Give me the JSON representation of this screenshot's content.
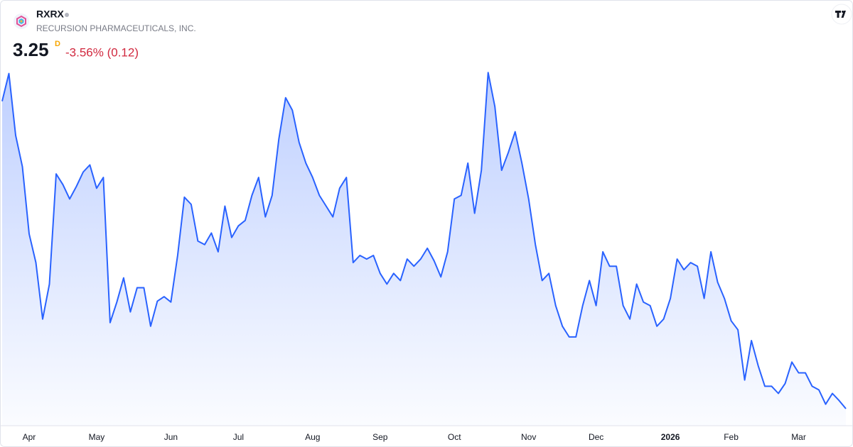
{
  "header": {
    "ticker": "RXRX",
    "name": "RECURSION PHARMACEUTICALS, INC.",
    "price": "3.25",
    "interval": "D",
    "change": "-3.56% (0.12)"
  },
  "chart_data": {
    "type": "area",
    "color": "#2962ff",
    "categories": [
      null,
      null,
      null,
      null,
      "Apr",
      null,
      null,
      null,
      null,
      null,
      null,
      null,
      null,
      null,
      "May",
      null,
      null,
      null,
      null,
      null,
      null,
      null,
      null,
      null,
      null,
      "Jun",
      null,
      null,
      null,
      null,
      null,
      null,
      null,
      null,
      null,
      "Jul",
      null,
      null,
      null,
      null,
      null,
      null,
      null,
      null,
      null,
      null,
      "Aug",
      null,
      null,
      null,
      null,
      null,
      null,
      null,
      null,
      null,
      "Sep",
      null,
      null,
      null,
      null,
      null,
      null,
      null,
      null,
      null,
      null,
      "Oct",
      null,
      null,
      null,
      null,
      null,
      null,
      null,
      null,
      null,
      null,
      "Nov",
      null,
      null,
      null,
      null,
      null,
      null,
      null,
      null,
      null,
      "Dec",
      null,
      null,
      null,
      null,
      null,
      null,
      null,
      null,
      null,
      null,
      "2026",
      null,
      null,
      null,
      null,
      null,
      null,
      null,
      null,
      "Feb",
      null,
      null,
      null,
      null,
      null,
      null,
      null,
      null,
      null,
      "Mar",
      null,
      null,
      null,
      null,
      null,
      null,
      null
    ],
    "values": [
      6.68,
      6.99,
      6.3,
      5.95,
      5.2,
      4.88,
      4.25,
      4.64,
      5.87,
      5.75,
      5.59,
      5.73,
      5.89,
      5.97,
      5.71,
      5.83,
      4.21,
      4.44,
      4.71,
      4.33,
      4.6,
      4.6,
      4.17,
      4.45,
      4.5,
      4.44,
      4.96,
      5.61,
      5.53,
      5.12,
      5.08,
      5.21,
      5.0,
      5.51,
      5.16,
      5.29,
      5.35,
      5.63,
      5.83,
      5.39,
      5.63,
      6.26,
      6.72,
      6.58,
      6.22,
      5.99,
      5.83,
      5.63,
      5.51,
      5.39,
      5.71,
      5.83,
      4.88,
      4.96,
      4.92,
      4.96,
      4.76,
      4.64,
      4.76,
      4.68,
      4.92,
      4.84,
      4.92,
      5.04,
      4.9,
      4.72,
      5.0,
      5.59,
      5.63,
      5.99,
      5.43,
      5.91,
      7.0,
      6.62,
      5.91,
      6.11,
      6.34,
      5.99,
      5.59,
      5.08,
      4.68,
      4.76,
      4.4,
      4.17,
      4.05,
      4.05,
      4.4,
      4.68,
      4.4,
      5.0,
      4.84,
      4.84,
      4.4,
      4.25,
      4.64,
      4.44,
      4.4,
      4.17,
      4.25,
      4.48,
      4.92,
      4.8,
      4.88,
      4.84,
      4.48,
      5.0,
      4.66,
      4.48,
      4.23,
      4.13,
      3.57,
      4.01,
      3.73,
      3.5,
      3.5,
      3.42,
      3.53,
      3.77,
      3.65,
      3.65,
      3.5,
      3.46,
      3.3,
      3.42,
      3.34,
      3.25
    ],
    "ylim": [
      3.06,
      7.81
    ]
  }
}
